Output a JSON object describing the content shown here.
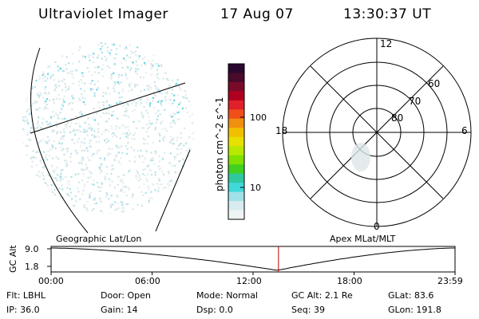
{
  "header": {
    "instrument": "Ultraviolet Imager",
    "date": "17 Aug 07",
    "time": "13:30:37 UT"
  },
  "colorbar": {
    "label": "photon cm^-2 s^-1",
    "ticks": [
      "100",
      "10"
    ],
    "colors": [
      "#2a0830",
      "#4a0a2a",
      "#7a0a2a",
      "#b00020",
      "#e0202a",
      "#f05018",
      "#f09010",
      "#f0c000",
      "#e8e000",
      "#b8e800",
      "#80e000",
      "#40d020",
      "#30c8a0",
      "#40d8d8",
      "#a0e0e8",
      "#d8ecef",
      "#eef4f4"
    ]
  },
  "polar_plot": {
    "labels": {
      "top": "12",
      "bottom": "0",
      "left": "18",
      "right": "6"
    },
    "lat_labels": [
      "60",
      "70",
      "80"
    ]
  },
  "timeline": {
    "left_label": "Geographic Lat/Lon",
    "right_label": "Apex MLat/MLT",
    "axis_label": "GC Alt",
    "y_ticks": [
      "9.0",
      "1.8"
    ],
    "x_ticks": [
      "00:00",
      "06:00",
      "12:00",
      "18:00",
      "23:59"
    ],
    "current_time_fraction": 0.5629
  },
  "info": {
    "row1": [
      {
        "k": "Flt:",
        "v": "LBHL"
      },
      {
        "k": "Door:",
        "v": "Open"
      },
      {
        "k": "Mode:",
        "v": "Normal"
      },
      {
        "k": "GC Alt:",
        "v": "2.1 Re"
      },
      {
        "k": "GLat:",
        "v": "83.6"
      }
    ],
    "row2": [
      {
        "k": "IP:",
        "v": "36.0"
      },
      {
        "k": "Gain:",
        "v": "14"
      },
      {
        "k": "Dsp:",
        "v": "0.0"
      },
      {
        "k": "Seq:",
        "v": "39"
      },
      {
        "k": "GLon:",
        "v": "191.8"
      }
    ]
  }
}
